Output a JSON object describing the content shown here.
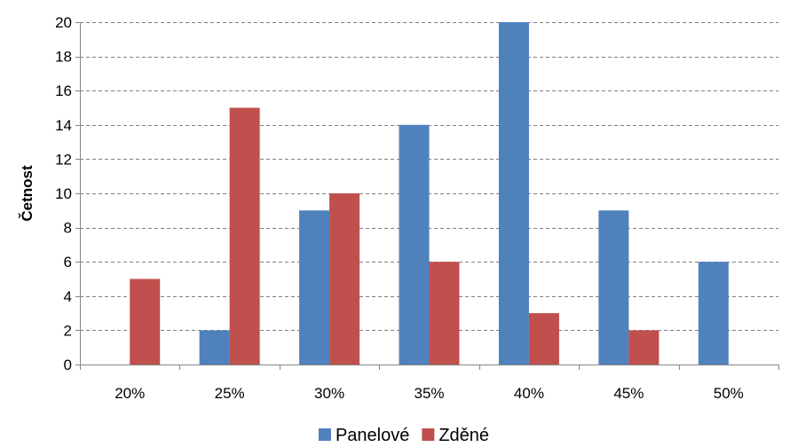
{
  "chart_data": {
    "type": "bar",
    "title": "",
    "xlabel": "",
    "ylabel": "Četnost",
    "ylim": [
      0,
      20
    ],
    "yticks": [
      "0",
      "2",
      "4",
      "6",
      "8",
      "10",
      "12",
      "14",
      "16",
      "18",
      "20"
    ],
    "categories": [
      "20%",
      "25%",
      "30%",
      "35%",
      "40%",
      "45%",
      "50%"
    ],
    "series": [
      {
        "name": "Panelové",
        "color": "#4F81BD",
        "values": [
          0,
          2,
          9,
          14,
          20,
          9,
          6
        ]
      },
      {
        "name": "Zděné",
        "color": "#C0504D",
        "values": [
          5,
          15,
          10,
          6,
          3,
          2,
          0
        ]
      }
    ],
    "grid": true,
    "grid_style": "dashed",
    "legend_position": "bottom"
  }
}
